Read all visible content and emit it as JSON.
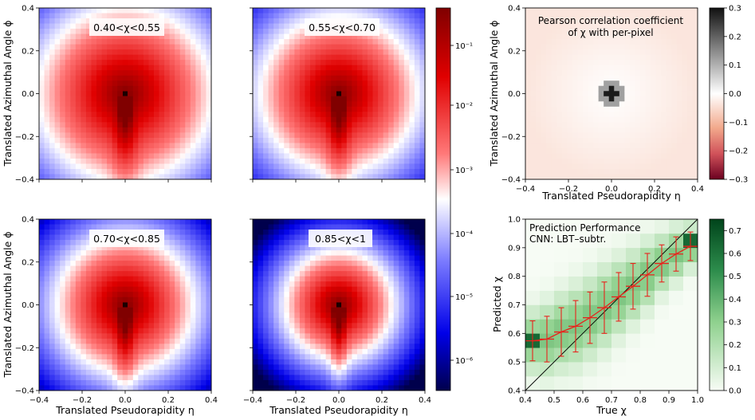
{
  "chart_data": [
    {
      "type": "heatmap",
      "panel": "top-left",
      "annotation": "0.40<χ<0.55",
      "ylabel": "Translated Azimuthal Angle ϕ",
      "xlabel": "",
      "xlim": [
        -0.4,
        0.4
      ],
      "ylim": [
        -0.4,
        0.4
      ],
      "yticks": [
        "0.4",
        "0.2",
        "0.0",
        "−0.2",
        "−0.4"
      ],
      "xticks": [],
      "colormap": "seismic-log",
      "spread": 1.0
    },
    {
      "type": "heatmap",
      "panel": "top-middle",
      "annotation": "0.55<χ<0.70",
      "ylabel": "",
      "xlabel": "",
      "xlim": [
        -0.4,
        0.4
      ],
      "ylim": [
        -0.4,
        0.4
      ],
      "yticks": [],
      "xticks": [],
      "colormap": "seismic-log",
      "spread": 0.9
    },
    {
      "type": "heatmap",
      "panel": "bottom-left",
      "annotation": "0.70<χ<0.85",
      "ylabel": "Translated Azimuthal Angle ϕ",
      "xlabel": "Translated Pseudorapidity η",
      "xlim": [
        -0.4,
        0.4
      ],
      "ylim": [
        -0.4,
        0.4
      ],
      "yticks": [
        "0.4",
        "0.2",
        "0.0",
        "−0.2",
        "−0.4"
      ],
      "xticks": [
        "−0.4",
        "−0.2",
        "0.0",
        "0.2",
        "0.4"
      ],
      "colormap": "seismic-log",
      "spread": 0.78
    },
    {
      "type": "heatmap",
      "panel": "bottom-middle",
      "annotation": "0.85<χ<1",
      "ylabel": "",
      "xlabel": "Translated Pseudorapidity η",
      "xlim": [
        -0.4,
        0.4
      ],
      "ylim": [
        -0.4,
        0.4
      ],
      "yticks": [],
      "xticks": [
        "−0.4",
        "−0.2",
        "0.0",
        "0.2",
        "0.4"
      ],
      "colormap": "seismic-log",
      "spread": 0.62
    },
    {
      "type": "heatmap",
      "panel": "top-right",
      "annotation_lines": [
        "Pearson correlation coefficient",
        "of χ with per-pixel"
      ],
      "ylabel": "Translated Azimuthal Angle ϕ",
      "xlabel": "Translated Pseudorapidity η",
      "xlim": [
        -0.4,
        0.4
      ],
      "ylim": [
        -0.4,
        0.4
      ],
      "yticks": [
        "0.4",
        "0.2",
        "0.0",
        "−0.2",
        "−0.4"
      ],
      "xticks": [
        "−0.4",
        "−0.2",
        "0.0",
        "0.2",
        "0.4"
      ],
      "colorbar": {
        "range": [
          -0.3,
          0.3
        ],
        "ticks": [
          "0.3",
          "0.2",
          "0.1",
          "0.0",
          "−0.1",
          "−0.2",
          "−0.3"
        ],
        "colormap": "RdGy"
      }
    },
    {
      "type": "heatmap",
      "panel": "bottom-right",
      "annotation_lines": [
        "Prediction Performance",
        "CNN: LBT–subtr."
      ],
      "xlabel": "True χ",
      "ylabel": "Predicted χ",
      "xlim": [
        0.4,
        1.0
      ],
      "ylim": [
        0.4,
        1.0
      ],
      "xticks": [
        "0.4",
        "0.5",
        "0.6",
        "0.7",
        "0.8",
        "0.9",
        "1.0"
      ],
      "yticks": [
        "1.0",
        "0.9",
        "0.8",
        "0.7",
        "0.6",
        "0.5",
        "0.4"
      ],
      "colorbar": {
        "range": [
          0.0,
          0.75
        ],
        "ticks": [
          "0.7",
          "0.6",
          "0.5",
          "0.4",
          "0.3",
          "0.2",
          "0.1",
          "0.0"
        ],
        "colormap": "Greens"
      },
      "profile": {
        "x": [
          0.425,
          0.475,
          0.525,
          0.575,
          0.625,
          0.675,
          0.725,
          0.775,
          0.825,
          0.875,
          0.925,
          0.975
        ],
        "y": [
          0.574,
          0.58,
          0.605,
          0.625,
          0.655,
          0.69,
          0.728,
          0.765,
          0.805,
          0.845,
          0.878,
          0.905
        ],
        "err": [
          0.07,
          0.08,
          0.085,
          0.09,
          0.09,
          0.09,
          0.085,
          0.08,
          0.075,
          0.065,
          0.06,
          0.05
        ]
      },
      "diagonal": true
    }
  ],
  "shared_colorbar": {
    "scale": "log",
    "ticks": [
      "10⁻¹",
      "10⁻²",
      "10⁻³",
      "10⁻⁴",
      "10⁻⁵",
      "10⁻⁶"
    ],
    "colormap": "seismic"
  },
  "colors": {
    "profile": "#e8231c",
    "diagonal": "#000000"
  }
}
